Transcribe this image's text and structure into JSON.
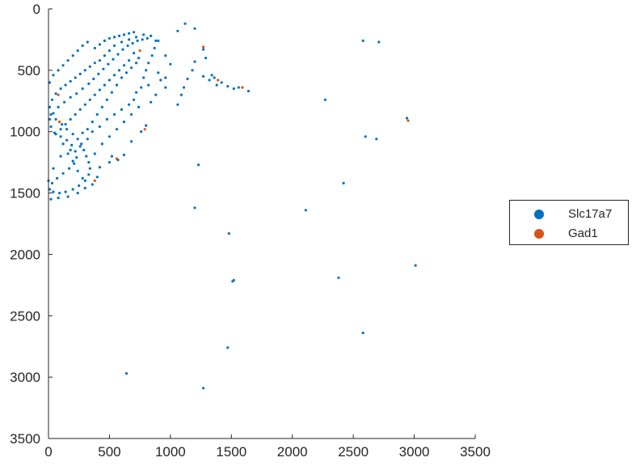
{
  "chart_data": {
    "type": "scatter",
    "title": "",
    "xlabel": "",
    "ylabel": "",
    "xlim": [
      0,
      3500
    ],
    "ylim": [
      0,
      3500
    ],
    "y_reversed": true,
    "grid": false,
    "x_ticks": [
      "0",
      "500",
      "1000",
      "1500",
      "2000",
      "2500",
      "3000",
      "3500"
    ],
    "y_ticks": [
      "0",
      "500",
      "1000",
      "1500",
      "2000",
      "2500",
      "3000",
      "3500"
    ],
    "legend_position": "right",
    "series": [
      {
        "name": "Slc17a7",
        "color": "#0072BD",
        "points": [
          [
            2580,
            260
          ],
          [
            2710,
            270
          ],
          [
            2270,
            740
          ],
          [
            2940,
            890
          ],
          [
            2600,
            1040
          ],
          [
            2690,
            1060
          ],
          [
            2420,
            1420
          ],
          [
            1230,
            1270
          ],
          [
            1200,
            1620
          ],
          [
            2110,
            1640
          ],
          [
            1480,
            1830
          ],
          [
            3010,
            2090
          ],
          [
            2380,
            2190
          ],
          [
            1520,
            2210
          ],
          [
            1510,
            2220
          ],
          [
            2580,
            2640
          ],
          [
            1470,
            2760
          ],
          [
            640,
            2970
          ],
          [
            1270,
            3090
          ],
          [
            1120,
            120
          ],
          [
            1200,
            160
          ],
          [
            1060,
            180
          ],
          [
            900,
            260
          ],
          [
            1270,
            330
          ],
          [
            1290,
            400
          ],
          [
            1200,
            430
          ],
          [
            1270,
            550
          ],
          [
            1320,
            580
          ],
          [
            1360,
            560
          ],
          [
            1420,
            600
          ],
          [
            1470,
            630
          ],
          [
            1520,
            650
          ],
          [
            1560,
            640
          ],
          [
            1640,
            670
          ],
          [
            1380,
            620
          ],
          [
            1340,
            540
          ],
          [
            1110,
            640
          ],
          [
            1090,
            700
          ],
          [
            1060,
            780
          ],
          [
            1180,
            500
          ],
          [
            1140,
            570
          ],
          [
            1000,
            450
          ],
          [
            960,
            380
          ],
          [
            960,
            560
          ],
          [
            820,
            620
          ],
          [
            880,
            700
          ],
          [
            840,
            760
          ],
          [
            800,
            950
          ],
          [
            760,
            1000
          ],
          [
            680,
            1080
          ],
          [
            620,
            1190
          ],
          [
            570,
            1230
          ],
          [
            520,
            1200
          ],
          [
            500,
            1250
          ],
          [
            420,
            1290
          ],
          [
            400,
            1370
          ],
          [
            360,
            1430
          ],
          [
            300,
            1460
          ],
          [
            240,
            1500
          ],
          [
            160,
            1530
          ],
          [
            80,
            1540
          ],
          [
            20,
            1550
          ],
          [
            0,
            1400
          ],
          [
            40,
            1300
          ],
          [
            100,
            1200
          ],
          [
            180,
            1150
          ],
          [
            260,
            1120
          ],
          [
            320,
            1060
          ],
          [
            360,
            1000
          ],
          [
            420,
            960
          ],
          [
            480,
            900
          ],
          [
            540,
            860
          ],
          [
            600,
            820
          ],
          [
            660,
            780
          ],
          [
            700,
            740
          ],
          [
            720,
            680
          ],
          [
            760,
            640
          ],
          [
            780,
            560
          ],
          [
            800,
            500
          ],
          [
            820,
            440
          ],
          [
            850,
            380
          ],
          [
            870,
            320
          ],
          [
            880,
            260
          ],
          [
            840,
            220
          ],
          [
            780,
            210
          ],
          [
            720,
            230
          ],
          [
            660,
            250
          ],
          [
            600,
            270
          ],
          [
            540,
            300
          ],
          [
            500,
            340
          ],
          [
            460,
            380
          ],
          [
            420,
            420
          ],
          [
            380,
            440
          ],
          [
            340,
            470
          ],
          [
            300,
            500
          ],
          [
            260,
            530
          ],
          [
            220,
            560
          ],
          [
            180,
            590
          ],
          [
            140,
            620
          ],
          [
            100,
            650
          ],
          [
            60,
            690
          ],
          [
            30,
            740
          ],
          [
            10,
            800
          ],
          [
            20,
            860
          ],
          [
            60,
            900
          ],
          [
            110,
            940
          ],
          [
            150,
            980
          ],
          [
            200,
            1020
          ],
          [
            240,
            1060
          ],
          [
            270,
            1100
          ],
          [
            290,
            1150
          ],
          [
            310,
            1200
          ],
          [
            330,
            1250
          ],
          [
            340,
            1300
          ],
          [
            330,
            1350
          ],
          [
            300,
            1400
          ],
          [
            250,
            1440
          ],
          [
            200,
            1470
          ],
          [
            140,
            1490
          ],
          [
            90,
            1500
          ],
          [
            40,
            1490
          ],
          [
            10,
            1470
          ],
          [
            30,
            1420
          ],
          [
            70,
            1380
          ],
          [
            120,
            1340
          ],
          [
            170,
            1300
          ],
          [
            210,
            1260
          ],
          [
            230,
            1210
          ],
          [
            220,
            1160
          ],
          [
            190,
            1110
          ],
          [
            150,
            1070
          ],
          [
            100,
            1040
          ],
          [
            50,
            1010
          ],
          [
            20,
            960
          ],
          [
            10,
            900
          ],
          [
            40,
            850
          ],
          [
            80,
            800
          ],
          [
            130,
            760
          ],
          [
            180,
            720
          ],
          [
            230,
            690
          ],
          [
            280,
            650
          ],
          [
            330,
            610
          ],
          [
            370,
            570
          ],
          [
            410,
            530
          ],
          [
            450,
            490
          ],
          [
            490,
            450
          ],
          [
            530,
            410
          ],
          [
            570,
            370
          ],
          [
            610,
            330
          ],
          [
            650,
            300
          ],
          [
            690,
            280
          ],
          [
            730,
            260
          ],
          [
            770,
            250
          ],
          [
            810,
            240
          ],
          [
            560,
            620
          ],
          [
            520,
            680
          ],
          [
            480,
            740
          ],
          [
            440,
            800
          ],
          [
            400,
            860
          ],
          [
            360,
            920
          ],
          [
            320,
            980
          ],
          [
            280,
            1010
          ],
          [
            600,
            560
          ],
          [
            640,
            520
          ],
          [
            680,
            480
          ],
          [
            720,
            440
          ],
          [
            740,
            400
          ],
          [
            700,
            360
          ],
          [
            660,
            420
          ],
          [
            620,
            460
          ],
          [
            580,
            500
          ],
          [
            540,
            540
          ],
          [
            500,
            580
          ],
          [
            460,
            620
          ],
          [
            420,
            660
          ],
          [
            380,
            700
          ],
          [
            340,
            740
          ],
          [
            300,
            780
          ],
          [
            260,
            820
          ],
          [
            220,
            860
          ],
          [
            180,
            900
          ],
          [
            140,
            940
          ],
          [
            100,
            980
          ],
          [
            60,
            1020
          ],
          [
            120,
            1100
          ],
          [
            160,
            1180
          ],
          [
            200,
            1240
          ],
          [
            240,
            1320
          ],
          [
            280,
            1380
          ],
          [
            380,
            1180
          ],
          [
            440,
            1100
          ],
          [
            500,
            1040
          ],
          [
            560,
            980
          ],
          [
            620,
            920
          ],
          [
            680,
            860
          ],
          [
            740,
            800
          ],
          [
            160,
            420
          ],
          [
            200,
            380
          ],
          [
            240,
            340
          ],
          [
            280,
            300
          ],
          [
            320,
            270
          ],
          [
            120,
            460
          ],
          [
            80,
            500
          ],
          [
            40,
            540
          ],
          [
            10,
            600
          ],
          [
            380,
            320
          ],
          [
            420,
            290
          ],
          [
            460,
            260
          ],
          [
            500,
            240
          ],
          [
            540,
            230
          ],
          [
            580,
            220
          ],
          [
            620,
            210
          ],
          [
            660,
            200
          ],
          [
            700,
            190
          ],
          [
            960,
            640
          ],
          [
            920,
            580
          ],
          [
            900,
            520
          ]
        ]
      },
      {
        "name": "Gad1",
        "color": "#D95319",
        "points": [
          [
            1270,
            310
          ],
          [
            750,
            340
          ],
          [
            1390,
            580
          ],
          [
            1590,
            640
          ],
          [
            80,
            700
          ],
          [
            2950,
            910
          ],
          [
            790,
            980
          ],
          [
            560,
            1220
          ],
          [
            380,
            1400
          ],
          [
            90,
            920
          ]
        ]
      }
    ]
  }
}
